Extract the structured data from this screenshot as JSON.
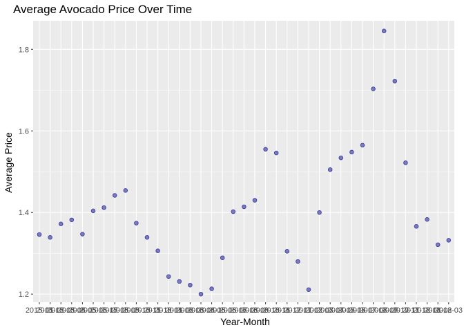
{
  "chart_data": {
    "type": "scatter",
    "title": "Average Avocado Price Over Time",
    "xlabel": "Year-Month",
    "ylabel": "Average Price",
    "ylim": [
      1.18,
      1.87
    ],
    "yticks": [
      1.2,
      1.4,
      1.6,
      1.8
    ],
    "ytick_labels": [
      "1.2",
      "1.4",
      "1.6",
      "1.8"
    ],
    "categories": [
      "2015-01",
      "2015-02",
      "2015-03",
      "2015-04",
      "2015-05",
      "2015-06",
      "2015-07",
      "2015-08",
      "2015-09",
      "2015-10",
      "2015-11",
      "2015-12",
      "2016-01",
      "2016-02",
      "2016-03",
      "2016-04",
      "2016-05",
      "2016-06",
      "2016-07",
      "2016-08",
      "2016-09",
      "2016-10",
      "2016-11",
      "2016-12",
      "2017-01",
      "2017-02",
      "2017-03",
      "2017-04",
      "2017-05",
      "2017-06",
      "2017-07",
      "2017-08",
      "2017-09",
      "2017-10",
      "2017-11",
      "2017-12",
      "2018-01",
      "2018-02",
      "2018-03"
    ],
    "values": [
      1.346,
      1.339,
      1.372,
      1.382,
      1.347,
      1.404,
      1.412,
      1.442,
      1.454,
      1.374,
      1.339,
      1.306,
      1.243,
      1.231,
      1.222,
      1.2,
      1.213,
      1.289,
      1.402,
      1.414,
      1.43,
      1.555,
      1.546,
      1.305,
      1.28,
      1.211,
      1.4,
      1.505,
      1.534,
      1.548,
      1.565,
      1.703,
      1.845,
      1.722,
      1.522,
      1.366,
      1.383,
      1.321,
      1.332
    ],
    "colors": {
      "panel": "#ebebeb",
      "grid": "#ffffff",
      "point_fill": "#7b7bbf",
      "point_stroke": "#3d3d9e"
    },
    "grid": true,
    "legend": "none"
  }
}
